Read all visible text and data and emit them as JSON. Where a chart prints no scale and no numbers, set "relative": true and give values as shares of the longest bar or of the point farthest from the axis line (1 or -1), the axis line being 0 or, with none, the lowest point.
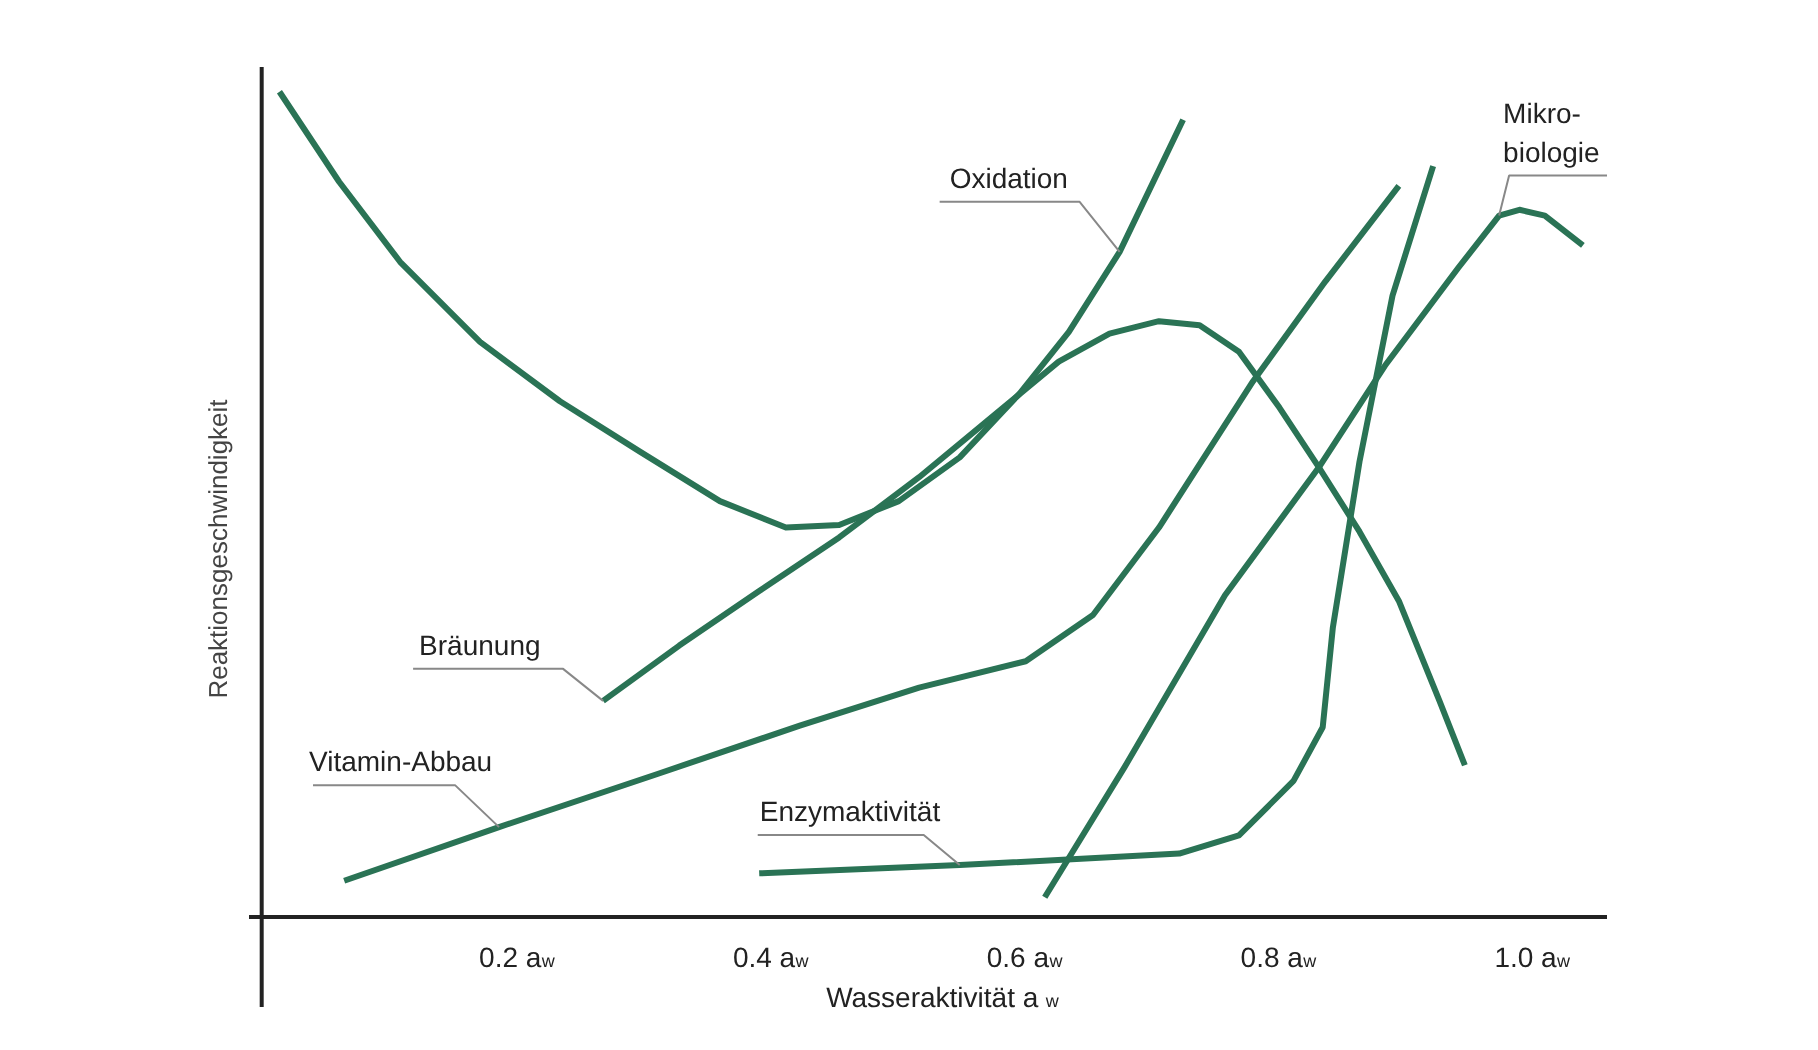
{
  "chart_data": {
    "type": "line",
    "relative": true,
    "xlabel": "Wasseraktivität  a$_{w}$",
    "ylabel": "Reaktionsgeschwindigkeit",
    "xlim": [
      -0.01,
      1.06
    ],
    "xticks": [
      {
        "value": 0.2,
        "label": "0.2 a$_{w}$"
      },
      {
        "value": 0.4,
        "label": "0.4 a$_{w}$"
      },
      {
        "value": 0.6,
        "label": "0.6 a$_{w}$"
      },
      {
        "value": 0.8,
        "label": "0.8 a$_{w}$"
      },
      {
        "value": 1.0,
        "label": "1.0 a$_{w}$"
      }
    ],
    "grid": false,
    "marker": "none",
    "line_style": "solid",
    "series": [
      {
        "name": "Oxidation",
        "color": "#2a7355",
        "x": [
          0.014,
          0.061,
          0.109,
          0.172,
          0.235,
          0.298,
          0.361,
          0.413,
          0.455,
          0.502,
          0.55,
          0.597,
          0.636,
          0.676,
          0.726
        ],
        "values": [
          1.0,
          0.891,
          0.794,
          0.697,
          0.625,
          0.564,
          0.504,
          0.472,
          0.475,
          0.504,
          0.557,
          0.634,
          0.709,
          0.806,
          0.966
        ]
      },
      {
        "name": "Bräunung",
        "color": "#2a7355",
        "x": [
          0.269,
          0.329,
          0.392,
          0.455,
          0.518,
          0.581,
          0.628,
          0.668,
          0.707,
          0.739,
          0.77,
          0.802,
          0.833,
          0.865,
          0.896,
          0.928,
          0.948
        ],
        "values": [
          0.262,
          0.329,
          0.395,
          0.46,
          0.533,
          0.613,
          0.673,
          0.707,
          0.722,
          0.717,
          0.685,
          0.617,
          0.545,
          0.467,
          0.383,
          0.262,
          0.184
        ]
      },
      {
        "name": "Vitamin-Abbau",
        "color": "#2a7355",
        "x": [
          0.065,
          0.187,
          0.313,
          0.424,
          0.518,
          0.602,
          0.655,
          0.707,
          0.781,
          0.838,
          0.896
        ],
        "values": [
          0.044,
          0.109,
          0.174,
          0.232,
          0.278,
          0.31,
          0.366,
          0.472,
          0.649,
          0.77,
          0.886
        ]
      },
      {
        "name": "Enzymaktivität",
        "color": "#2a7355",
        "x": [
          0.392,
          0.55,
          0.723,
          0.77,
          0.813,
          0.836,
          0.844,
          0.865,
          0.891,
          0.923
        ],
        "values": [
          0.053,
          0.063,
          0.077,
          0.099,
          0.165,
          0.23,
          0.351,
          0.552,
          0.753,
          0.91
        ]
      },
      {
        "name": "Mikro-\nbiologie",
        "color": "#2a7355",
        "x": [
          0.617,
          0.68,
          0.759,
          0.833,
          0.885,
          0.943,
          0.975,
          0.991,
          1.011,
          1.041
        ],
        "values": [
          0.024,
          0.182,
          0.39,
          0.545,
          0.668,
          0.787,
          0.85,
          0.857,
          0.85,
          0.814
        ]
      }
    ]
  }
}
